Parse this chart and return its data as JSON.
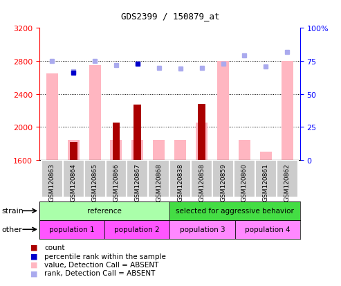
{
  "title": "GDS2399 / 150879_at",
  "samples": [
    "GSM120863",
    "GSM120864",
    "GSM120865",
    "GSM120866",
    "GSM120867",
    "GSM120868",
    "GSM120838",
    "GSM120858",
    "GSM120859",
    "GSM120860",
    "GSM120861",
    "GSM120862"
  ],
  "value_absent": [
    2650,
    1840,
    2750,
    1840,
    1840,
    1840,
    1840,
    2050,
    2800,
    1840,
    1700,
    2800
  ],
  "count_values": [
    null,
    1820,
    null,
    2050,
    2270,
    null,
    null,
    2280,
    null,
    null,
    null,
    null
  ],
  "rank_absent": [
    75,
    67,
    75,
    72,
    73,
    70,
    69,
    70,
    73,
    79,
    71,
    82
  ],
  "percentile_rank": [
    null,
    66,
    null,
    null,
    73,
    null,
    null,
    null,
    null,
    null,
    null,
    null
  ],
  "ylim_left": [
    1600,
    3200
  ],
  "ylim_right": [
    0,
    100
  ],
  "yticks_left": [
    1600,
    2000,
    2400,
    2800,
    3200
  ],
  "yticks_right": [
    0,
    25,
    50,
    75,
    100
  ],
  "ytick_labels_right": [
    "0",
    "25",
    "50",
    "75",
    "100%"
  ],
  "strain_groups": [
    {
      "label": "reference",
      "start": 0,
      "end": 6,
      "color": "#aaffaa"
    },
    {
      "label": "selected for aggressive behavior",
      "start": 6,
      "end": 12,
      "color": "#44dd44"
    }
  ],
  "other_groups": [
    {
      "label": "population 1",
      "start": 0,
      "end": 3,
      "color": "#ff55ff"
    },
    {
      "label": "population 2",
      "start": 3,
      "end": 6,
      "color": "#ff55ff"
    },
    {
      "label": "population 3",
      "start": 6,
      "end": 9,
      "color": "#ff88ff"
    },
    {
      "label": "population 4",
      "start": 9,
      "end": 12,
      "color": "#ff88ff"
    }
  ],
  "bar_color_absent": "#ffb6c1",
  "bar_color_count": "#aa0000",
  "dot_color_rank": "#aaaaee",
  "dot_color_percentile": "#0000cc",
  "baseline": 1600,
  "grid_lines": [
    2000,
    2400,
    2800
  ],
  "legend_items": [
    {
      "color": "#aa0000",
      "label": "count"
    },
    {
      "color": "#0000cc",
      "label": "percentile rank within the sample"
    },
    {
      "color": "#ffb6c1",
      "label": "value, Detection Call = ABSENT"
    },
    {
      "color": "#aaaaee",
      "label": "rank, Detection Call = ABSENT"
    }
  ]
}
